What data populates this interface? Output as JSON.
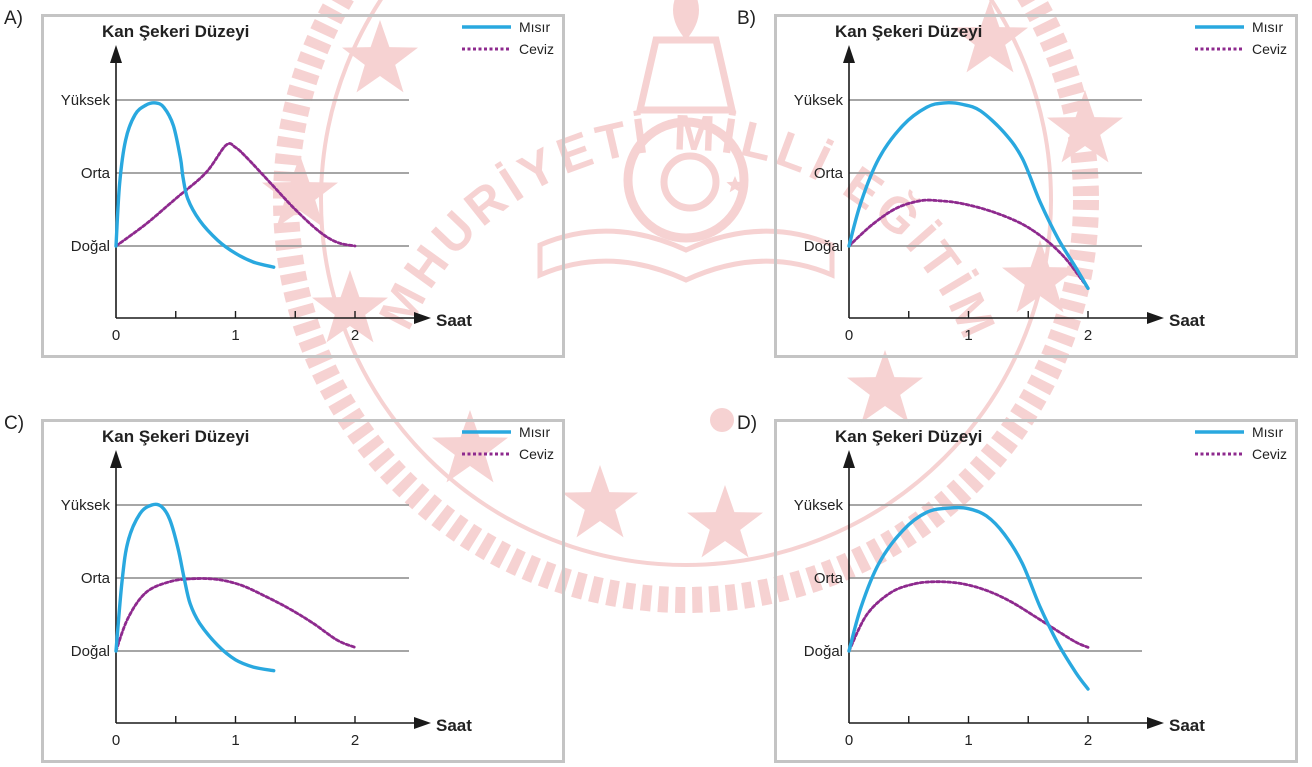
{
  "colors": {
    "misir": "#29a8df",
    "ceviz": "#8e2a8e",
    "grid": "#9a9a9a",
    "axis": "#1a1a1a",
    "border": "#c4c4c4",
    "watermark": "#f3c3c3"
  },
  "watermark": {
    "text": "TÜRKİYE CUMHURİYETİ MİLLİ EĞİTİM BAKANLIĞI"
  },
  "chart_data": [
    {
      "option": "A)",
      "type": "line",
      "title": "Kan Şekeri Düzeyi",
      "xlabel": "Saat",
      "x_ticks": [
        "0",
        "1",
        "2"
      ],
      "y_levels": [
        "Yüksek",
        "Orta",
        "Doğal"
      ],
      "legend_position": "top-right",
      "grid": true,
      "series": [
        {
          "name": "Mısır",
          "style": "solid",
          "color": "#29a8df",
          "points": [
            [
              0,
              0
            ],
            [
              0.03,
              0.85
            ],
            [
              0.08,
              1.45
            ],
            [
              0.16,
              1.8
            ],
            [
              0.25,
              1.93
            ],
            [
              0.33,
              1.96
            ],
            [
              0.4,
              1.9
            ],
            [
              0.48,
              1.65
            ],
            [
              0.54,
              1.2
            ],
            [
              0.56,
              0.95
            ],
            [
              0.6,
              0.65
            ],
            [
              0.7,
              0.35
            ],
            [
              0.85,
              0.08
            ],
            [
              1.0,
              -0.1
            ],
            [
              1.15,
              -0.22
            ],
            [
              1.32,
              -0.29
            ]
          ]
        },
        {
          "name": "Ceviz",
          "style": "dotted",
          "color": "#8e2a8e",
          "points": [
            [
              0,
              0
            ],
            [
              0.25,
              0.3
            ],
            [
              0.5,
              0.65
            ],
            [
              0.75,
              1.0
            ],
            [
              0.92,
              1.38
            ],
            [
              1.0,
              1.35
            ],
            [
              1.1,
              1.2
            ],
            [
              1.3,
              0.85
            ],
            [
              1.5,
              0.5
            ],
            [
              1.7,
              0.2
            ],
            [
              1.85,
              0.05
            ],
            [
              2.0,
              0.0
            ]
          ]
        }
      ]
    },
    {
      "option": "B)",
      "type": "line",
      "title": "Kan Şekeri Düzeyi",
      "xlabel": "Saat",
      "x_ticks": [
        "0",
        "1",
        "2"
      ],
      "y_levels": [
        "Yüksek",
        "Orta",
        "Doğal"
      ],
      "legend_position": "top-right",
      "grid": true,
      "series": [
        {
          "name": "Mısır",
          "style": "solid",
          "color": "#29a8df",
          "points": [
            [
              0,
              0
            ],
            [
              0.1,
              0.6
            ],
            [
              0.25,
              1.2
            ],
            [
              0.45,
              1.65
            ],
            [
              0.65,
              1.9
            ],
            [
              0.8,
              1.96
            ],
            [
              0.95,
              1.94
            ],
            [
              1.1,
              1.85
            ],
            [
              1.3,
              1.55
            ],
            [
              1.45,
              1.2
            ],
            [
              1.6,
              0.6
            ],
            [
              1.75,
              0.1
            ],
            [
              1.9,
              -0.3
            ],
            [
              2.0,
              -0.58
            ]
          ]
        },
        {
          "name": "Ceviz",
          "style": "dotted",
          "color": "#8e2a8e",
          "points": [
            [
              0,
              0
            ],
            [
              0.2,
              0.3
            ],
            [
              0.4,
              0.52
            ],
            [
              0.6,
              0.62
            ],
            [
              0.75,
              0.62
            ],
            [
              0.95,
              0.58
            ],
            [
              1.2,
              0.47
            ],
            [
              1.45,
              0.3
            ],
            [
              1.65,
              0.08
            ],
            [
              1.8,
              -0.15
            ],
            [
              1.92,
              -0.4
            ],
            [
              2.0,
              -0.58
            ]
          ]
        }
      ]
    },
    {
      "option": "C)",
      "type": "line",
      "title": "Kan Şekeri Düzeyi",
      "xlabel": "Saat",
      "x_ticks": [
        "0",
        "1",
        "2"
      ],
      "y_levels": [
        "Yüksek",
        "Orta",
        "Doğal"
      ],
      "legend_position": "top-right",
      "grid": true,
      "series": [
        {
          "name": "Mısır",
          "style": "solid",
          "color": "#29a8df",
          "points": [
            [
              0,
              0
            ],
            [
              0.05,
              0.95
            ],
            [
              0.1,
              1.5
            ],
            [
              0.2,
              1.88
            ],
            [
              0.3,
              2.0
            ],
            [
              0.38,
              1.98
            ],
            [
              0.45,
              1.8
            ],
            [
              0.52,
              1.4
            ],
            [
              0.57,
              1.0
            ],
            [
              0.62,
              0.65
            ],
            [
              0.7,
              0.38
            ],
            [
              0.85,
              0.08
            ],
            [
              1.0,
              -0.12
            ],
            [
              1.15,
              -0.22
            ],
            [
              1.32,
              -0.27
            ]
          ]
        },
        {
          "name": "Ceviz",
          "style": "dotted",
          "color": "#8e2a8e",
          "points": [
            [
              0,
              0
            ],
            [
              0.1,
              0.45
            ],
            [
              0.25,
              0.8
            ],
            [
              0.45,
              0.95
            ],
            [
              0.65,
              0.99
            ],
            [
              0.85,
              0.98
            ],
            [
              1.05,
              0.9
            ],
            [
              1.25,
              0.75
            ],
            [
              1.45,
              0.58
            ],
            [
              1.65,
              0.38
            ],
            [
              1.85,
              0.15
            ],
            [
              2.0,
              0.05
            ]
          ]
        }
      ]
    },
    {
      "option": "D)",
      "type": "line",
      "title": "Kan Şekeri Düzeyi",
      "xlabel": "Saat",
      "x_ticks": [
        "0",
        "1",
        "2"
      ],
      "y_levels": [
        "Yüksek",
        "Orta",
        "Doğal"
      ],
      "legend_position": "top-right",
      "grid": true,
      "series": [
        {
          "name": "Mısır",
          "style": "solid",
          "color": "#29a8df",
          "points": [
            [
              0,
              0
            ],
            [
              0.1,
              0.6
            ],
            [
              0.25,
              1.2
            ],
            [
              0.45,
              1.65
            ],
            [
              0.65,
              1.9
            ],
            [
              0.85,
              1.96
            ],
            [
              1.0,
              1.95
            ],
            [
              1.15,
              1.85
            ],
            [
              1.3,
              1.6
            ],
            [
              1.45,
              1.2
            ],
            [
              1.6,
              0.6
            ],
            [
              1.75,
              0.1
            ],
            [
              1.9,
              -0.3
            ],
            [
              2.0,
              -0.52
            ]
          ]
        },
        {
          "name": "Ceviz",
          "style": "dotted",
          "color": "#8e2a8e",
          "points": [
            [
              0,
              0
            ],
            [
              0.15,
              0.5
            ],
            [
              0.35,
              0.8
            ],
            [
              0.55,
              0.92
            ],
            [
              0.75,
              0.95
            ],
            [
              0.95,
              0.92
            ],
            [
              1.15,
              0.83
            ],
            [
              1.35,
              0.68
            ],
            [
              1.55,
              0.48
            ],
            [
              1.75,
              0.27
            ],
            [
              1.9,
              0.12
            ],
            [
              2.0,
              0.05
            ]
          ]
        }
      ]
    }
  ]
}
